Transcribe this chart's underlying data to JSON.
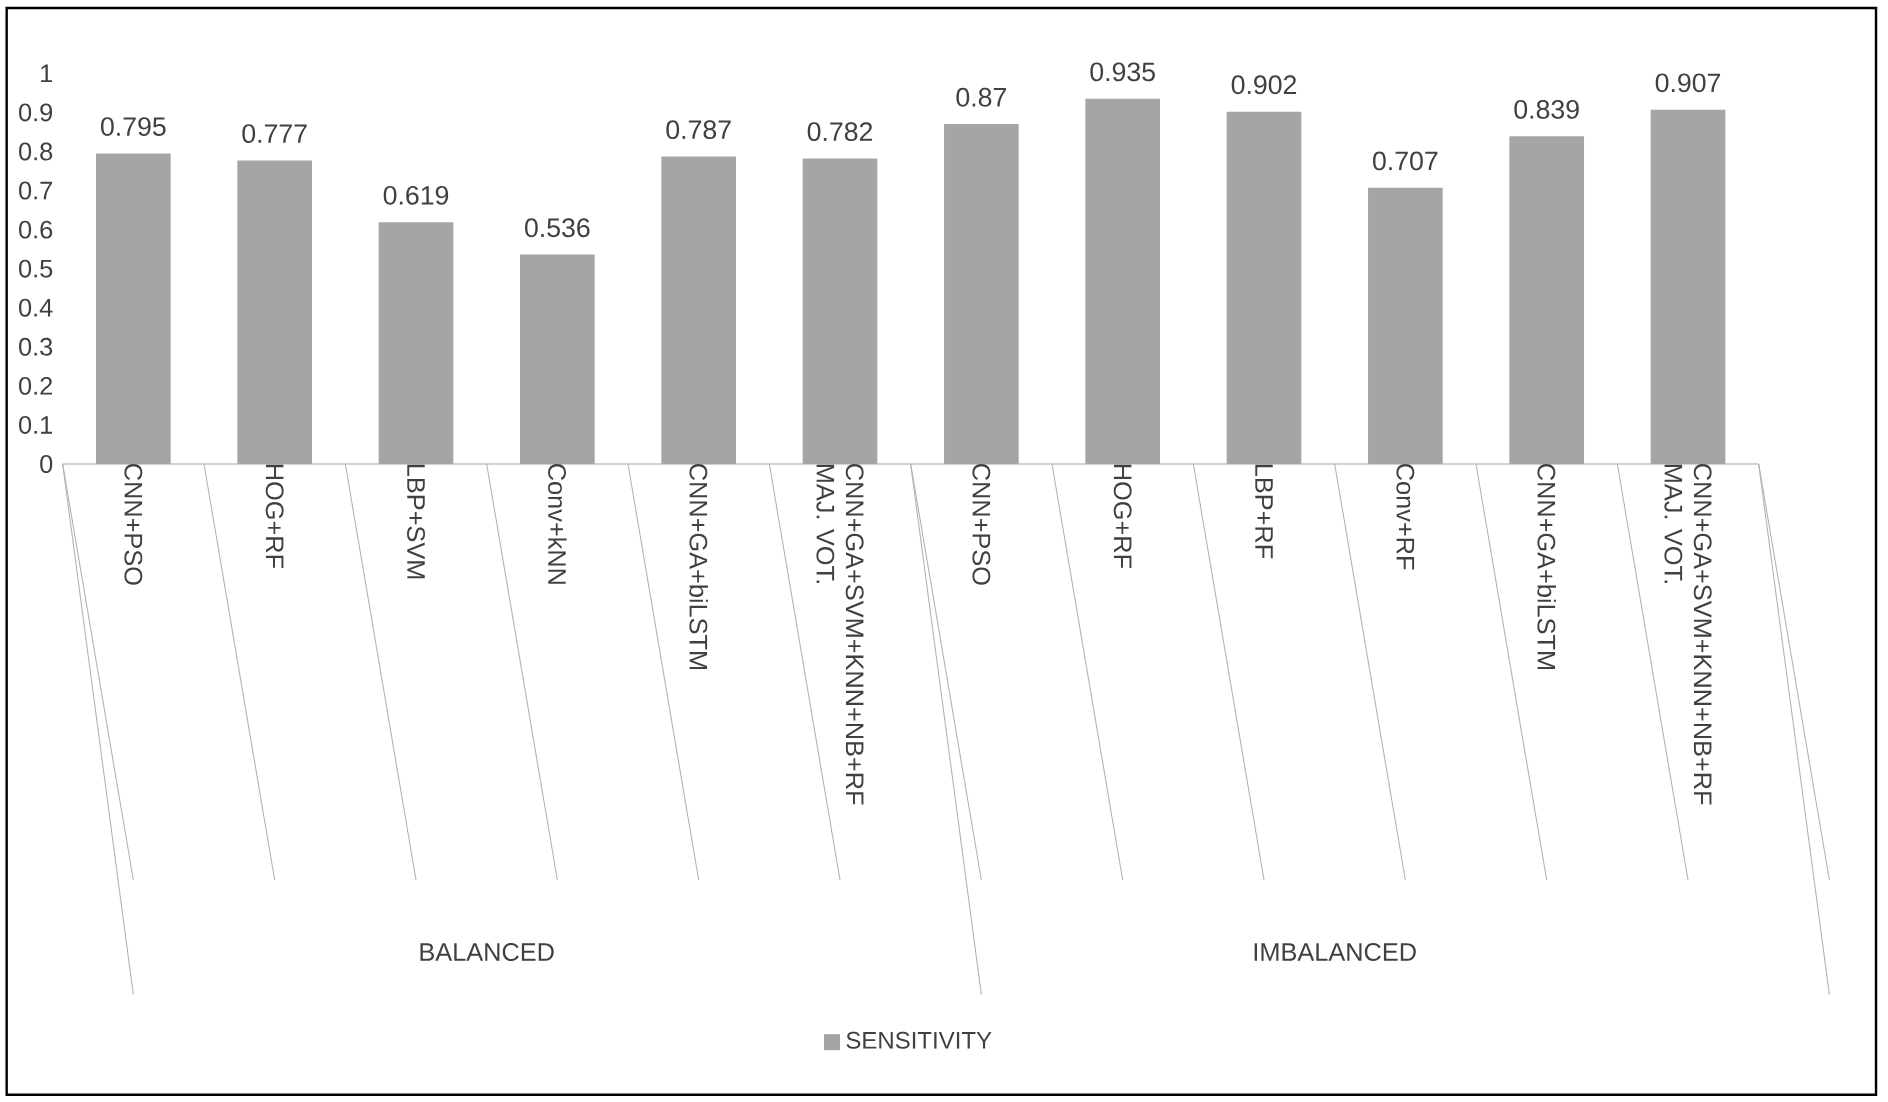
{
  "chart_data": {
    "type": "bar",
    "categories": [
      "CNN+PSO",
      "HOG+RF",
      "LBP+SVM",
      "Conv+kNN",
      "CNN+GA+biLSTM",
      "CNN+GA+SVM+KNN+NB+RF MAJ. VOT.",
      "CNN+PSO",
      "HOG+RF",
      "LBP+RF",
      "Conv+RF",
      "CNN+GA+biLSTM",
      "CNN+GA+SVM+KNN+NB+RF MAJ. VOT."
    ],
    "series": [
      {
        "name": "SENSITIVITY",
        "color": "#a5a5a5",
        "values": [
          0.795,
          0.777,
          0.619,
          0.536,
          0.787,
          0.782,
          0.87,
          0.935,
          0.902,
          0.707,
          0.839,
          0.907
        ]
      }
    ],
    "ylim": [
      0,
      1
    ],
    "yticks": [
      0,
      0.1,
      0.2,
      0.3,
      0.4,
      0.5,
      0.6,
      0.7,
      0.8,
      0.9,
      1
    ],
    "data_labels": true,
    "grid": false,
    "legend": "bottom",
    "annotations": [
      "BALANCED",
      "IMBALANCED"
    ]
  }
}
